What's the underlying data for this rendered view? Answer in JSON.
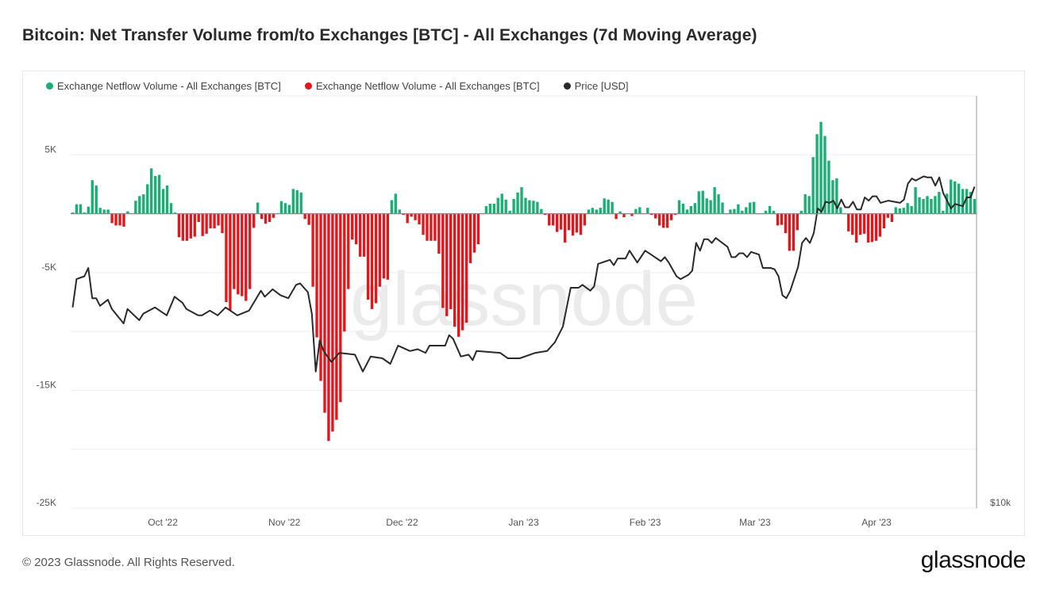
{
  "title": "Bitcoin: Net Transfer Volume from/to Exchanges [BTC] - All Exchanges (7d Moving Average)",
  "footer": "© 2023 Glassnode. All Rights Reserved.",
  "logo": "glassnode",
  "watermark": "glassnode",
  "colors": {
    "inflow": "#1aaf74",
    "outflow": "#e4161b",
    "price": "#2a2a2a",
    "grid": "#eeeeee",
    "zero": "#888888"
  },
  "chart_data": {
    "type": "bar",
    "title": "Bitcoin: Net Transfer Volume from/to Exchanges [BTC] - All Exchanges (7d Moving Average)",
    "legend": [
      "Exchange Netflow Volume - All Exchanges [BTC]",
      "Exchange Netflow Volume - All Exchanges [BTC]",
      "Price [USD]"
    ],
    "legend_position": "top-left",
    "x_ticks": [
      {
        "label": "Oct '22",
        "day": 23
      },
      {
        "label": "Nov '22",
        "day": 54
      },
      {
        "label": "Dec '22",
        "day": 84
      },
      {
        "label": "Jan '23",
        "day": 115
      },
      {
        "label": "Feb '23",
        "day": 146
      },
      {
        "label": "Mar '23",
        "day": 174
      },
      {
        "label": "Apr '23",
        "day": 205
      }
    ],
    "days": 231,
    "ylim": [
      -25000,
      10000
    ],
    "y_gridlines": [
      10000,
      5000,
      0,
      -5000,
      -10000,
      -15000,
      -20000,
      -25000
    ],
    "y_ticks": [
      {
        "label": "5K",
        "value": 5000
      },
      {
        "label": "-5K",
        "value": -5000
      },
      {
        "label": "-15K",
        "value": -15000
      },
      {
        "label": "-25K",
        "value": -25000
      }
    ],
    "y2_scale": "log",
    "y2lim": [
      10000,
      39000
    ],
    "y2_ticks": [
      {
        "label": "$10k",
        "value": 10000
      }
    ],
    "netflow": [
      100,
      800,
      800,
      100,
      600,
      2850,
      2400,
      500,
      350,
      350,
      -800,
      -1000,
      -1000,
      -1100,
      200,
      0,
      1100,
      1500,
      1650,
      2500,
      3850,
      3200,
      3300,
      2100,
      2400,
      900,
      100,
      -2000,
      -2300,
      -2300,
      -2100,
      -1950,
      -700,
      -1900,
      -1700,
      -1250,
      -1250,
      -1000,
      -1650,
      -7500,
      -8200,
      -6400,
      -6850,
      -7000,
      -7400,
      -6400,
      -1200,
      950,
      -450,
      -850,
      -700,
      -350,
      0,
      1070,
      900,
      750,
      2100,
      2000,
      1800,
      -450,
      -950,
      -6200,
      -10500,
      -14200,
      -16900,
      -19300,
      -18500,
      -17500,
      -16000,
      -10000,
      -6400,
      -2200,
      -2600,
      -3650,
      -3650,
      -7300,
      -8100,
      -7600,
      -6200,
      -5500,
      -5600,
      1150,
      1700,
      350,
      -100,
      -800,
      -250,
      -550,
      -900,
      -1800,
      -2300,
      -2300,
      -2300,
      -3400,
      -8000,
      -8700,
      -8100,
      -9600,
      -10450,
      -9900,
      -9250,
      -4200,
      -3300,
      -2600,
      0,
      650,
      850,
      850,
      1350,
      1700,
      1200,
      250,
      1250,
      1800,
      2250,
      1350,
      1150,
      1100,
      1000,
      400,
      -100,
      -1000,
      -1000,
      -1550,
      -1350,
      -2450,
      -1400,
      -1850,
      -1600,
      -1800,
      -1000,
      350,
      500,
      350,
      500,
      1300,
      1200,
      1000,
      -450,
      200,
      -300,
      0,
      -200,
      400,
      550,
      0,
      500,
      -100,
      -400,
      -1000,
      -1200,
      -1200,
      -550,
      -100,
      1150,
      850,
      350,
      650,
      900,
      1900,
      1950,
      1300,
      1150,
      2250,
      1650,
      950,
      0,
      350,
      400,
      800,
      250,
      550,
      950,
      1000,
      0,
      0,
      250,
      650,
      250,
      -1000,
      -950,
      -1650,
      -3150,
      -3150,
      -1400,
      250,
      1650,
      1500,
      4800,
      6750,
      7800,
      6600,
      4500,
      2850,
      3000,
      550,
      0,
      -1500,
      -1800,
      -2450,
      -1800,
      -1700,
      -2450,
      -2400,
      -2300,
      -1950,
      -1250,
      -350,
      -700,
      550,
      450,
      500,
      900,
      650,
      2250,
      1400,
      1250,
      1500,
      1250,
      1500,
      1850,
      250,
      1700,
      2900,
      2750,
      2550,
      2100,
      2100,
      1850,
      1250
    ],
    "price": [
      [
        0,
        19400
      ],
      [
        1,
        21300
      ],
      [
        3,
        21500
      ],
      [
        4,
        22100
      ],
      [
        5,
        20000
      ],
      [
        6,
        20000
      ],
      [
        7,
        19500
      ],
      [
        9,
        19900
      ],
      [
        10,
        19300
      ],
      [
        13,
        18400
      ],
      [
        14,
        19300
      ],
      [
        17,
        18600
      ],
      [
        18,
        19000
      ],
      [
        21,
        19400
      ],
      [
        24,
        18900
      ],
      [
        26,
        20100
      ],
      [
        28,
        19700
      ],
      [
        29,
        19300
      ],
      [
        32,
        18900
      ],
      [
        33,
        18900
      ],
      [
        35,
        19200
      ],
      [
        37,
        18900
      ],
      [
        39,
        19400
      ],
      [
        42,
        18900
      ],
      [
        45,
        19200
      ],
      [
        48,
        20500
      ],
      [
        49,
        20100
      ],
      [
        51,
        20600
      ],
      [
        53,
        20200
      ],
      [
        55,
        20000
      ],
      [
        57,
        20900
      ],
      [
        58,
        21000
      ],
      [
        60,
        20400
      ],
      [
        61,
        19000
      ],
      [
        62,
        15700
      ],
      [
        63,
        17400
      ],
      [
        64,
        16800
      ],
      [
        66,
        16200
      ],
      [
        68,
        16700
      ],
      [
        72,
        16600
      ],
      [
        74,
        15700
      ],
      [
        76,
        16500
      ],
      [
        79,
        16400
      ],
      [
        81,
        16100
      ],
      [
        83,
        17100
      ],
      [
        86,
        16800
      ],
      [
        88,
        16900
      ],
      [
        90,
        16700
      ],
      [
        91,
        17100
      ],
      [
        95,
        17100
      ],
      [
        96,
        17700
      ],
      [
        97,
        17500
      ],
      [
        99,
        16500
      ],
      [
        101,
        16600
      ],
      [
        102,
        16300
      ],
      [
        103,
        16800
      ],
      [
        109,
        16700
      ],
      [
        111,
        16400
      ],
      [
        114,
        16400
      ],
      [
        118,
        16700
      ],
      [
        121,
        16800
      ],
      [
        123,
        17300
      ],
      [
        125,
        18200
      ],
      [
        127,
        20700
      ],
      [
        129,
        20700
      ],
      [
        130,
        20900
      ],
      [
        132,
        20500
      ],
      [
        133,
        20800
      ],
      [
        134,
        22400
      ],
      [
        135,
        22500
      ],
      [
        137,
        22700
      ],
      [
        138,
        22300
      ],
      [
        139,
        22800
      ],
      [
        141,
        22800
      ],
      [
        142,
        23400
      ],
      [
        144,
        22500
      ],
      [
        146,
        23400
      ],
      [
        148,
        23000
      ],
      [
        150,
        22600
      ],
      [
        151,
        22900
      ],
      [
        152,
        22500
      ],
      [
        154,
        21500
      ],
      [
        155,
        21300
      ],
      [
        157,
        21600
      ],
      [
        158,
        21900
      ],
      [
        159,
        24000
      ],
      [
        160,
        23400
      ],
      [
        161,
        24300
      ],
      [
        162,
        24300
      ],
      [
        163,
        24000
      ],
      [
        164,
        24400
      ],
      [
        167,
        23700
      ],
      [
        168,
        22900
      ],
      [
        169,
        22900
      ],
      [
        170,
        23200
      ],
      [
        171,
        23200
      ],
      [
        172,
        22900
      ],
      [
        173,
        23300
      ],
      [
        175,
        23100
      ],
      [
        176,
        22100
      ],
      [
        178,
        22100
      ],
      [
        179,
        22000
      ],
      [
        180,
        21500
      ],
      [
        181,
        20200
      ],
      [
        182,
        20000
      ],
      [
        183,
        20500
      ],
      [
        185,
        22200
      ],
      [
        186,
        24000
      ],
      [
        187,
        24400
      ],
      [
        188,
        24000
      ],
      [
        189,
        24800
      ],
      [
        190,
        26900
      ],
      [
        191,
        26600
      ],
      [
        192,
        27500
      ],
      [
        193,
        27400
      ],
      [
        194,
        27600
      ],
      [
        195,
        26900
      ],
      [
        196,
        27700
      ],
      [
        197,
        27000
      ],
      [
        198,
        27000
      ],
      [
        199,
        27500
      ],
      [
        200,
        26800
      ],
      [
        201,
        26800
      ],
      [
        202,
        27900
      ],
      [
        203,
        27600
      ],
      [
        204,
        28000
      ],
      [
        205,
        28000
      ],
      [
        206,
        27400
      ],
      [
        208,
        27600
      ],
      [
        211,
        27400
      ],
      [
        212,
        27700
      ],
      [
        213,
        29200
      ],
      [
        214,
        29700
      ],
      [
        215,
        29500
      ],
      [
        217,
        29900
      ],
      [
        218,
        29800
      ],
      [
        219,
        29800
      ],
      [
        220,
        29000
      ],
      [
        221,
        29800
      ],
      [
        222,
        28300
      ],
      [
        224,
        26900
      ],
      [
        225,
        27300
      ],
      [
        226,
        27200
      ],
      [
        227,
        27100
      ],
      [
        228,
        27900
      ],
      [
        229,
        27900
      ],
      [
        230,
        28900
      ]
    ]
  }
}
